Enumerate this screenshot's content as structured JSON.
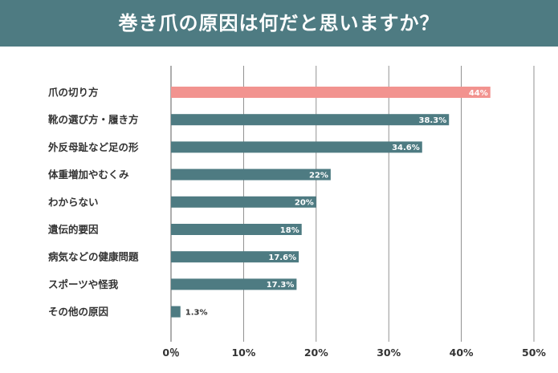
{
  "header": {
    "title": "巻き爪の原因は何だと思いますか？"
  },
  "colors": {
    "header_bg": "#4e7b82",
    "bar": "#4e7b82",
    "highlight": "#f2938f",
    "grid": "#777777",
    "text": "#333333"
  },
  "chart_data": {
    "type": "bar",
    "orientation": "horizontal",
    "title": "巻き爪の原因は何だと思いますか？",
    "categories": [
      "爪の切り方",
      "靴の選び方・履き方",
      "外反母趾など足の形",
      "体重増加やむくみ",
      "わからない",
      "遺伝的要因",
      "病気などの健康問題",
      "スポーツや怪我",
      "その他の原因"
    ],
    "values": [
      44,
      38.3,
      34.6,
      22,
      20,
      18,
      17.6,
      17.3,
      1.3
    ],
    "value_labels": [
      "44%",
      "38.3%",
      "34.6%",
      "22%",
      "20%",
      "18%",
      "17.6%",
      "17.3%",
      "1.3%"
    ],
    "highlight_index": 0,
    "xlim": [
      0,
      50
    ],
    "xticks": [
      0,
      10,
      20,
      30,
      40,
      50
    ],
    "xtick_labels": [
      "0％",
      "10%",
      "20%",
      "30%",
      "40%",
      "50%"
    ],
    "grid": true,
    "xlabel": "",
    "ylabel": ""
  }
}
